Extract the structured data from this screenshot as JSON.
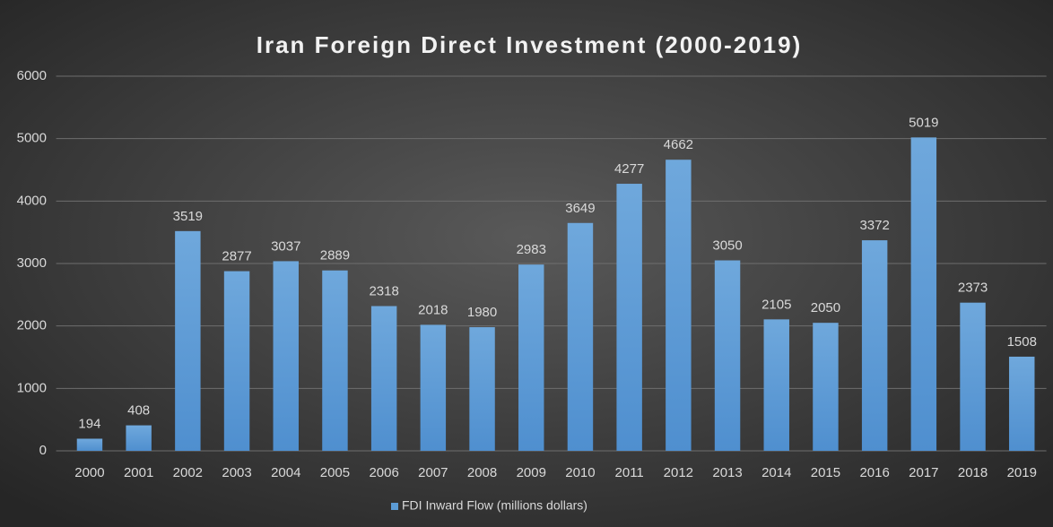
{
  "chart_data": {
    "type": "bar",
    "title": "Iran Foreign Direct Investment (2000-2019)",
    "categories": [
      "2000",
      "2001",
      "2002",
      "2003",
      "2004",
      "2005",
      "2006",
      "2007",
      "2008",
      "2009",
      "2010",
      "2011",
      "2012",
      "2013",
      "2014",
      "2015",
      "2016",
      "2017",
      "2018",
      "2019"
    ],
    "series": [
      {
        "name": "FDI Inward Flow (millions dollars)",
        "color": "#5b9bd5",
        "values": [
          194,
          408,
          3519,
          2877,
          3037,
          2889,
          2318,
          2018,
          1980,
          2983,
          3649,
          4277,
          4662,
          3050,
          2105,
          2050,
          3372,
          5019,
          2373,
          1508
        ]
      }
    ],
    "ylim": [
      0,
      6000
    ],
    "yticks": [
      0,
      1000,
      2000,
      3000,
      4000,
      5000,
      6000
    ],
    "grid": true,
    "legend": "bottom"
  }
}
